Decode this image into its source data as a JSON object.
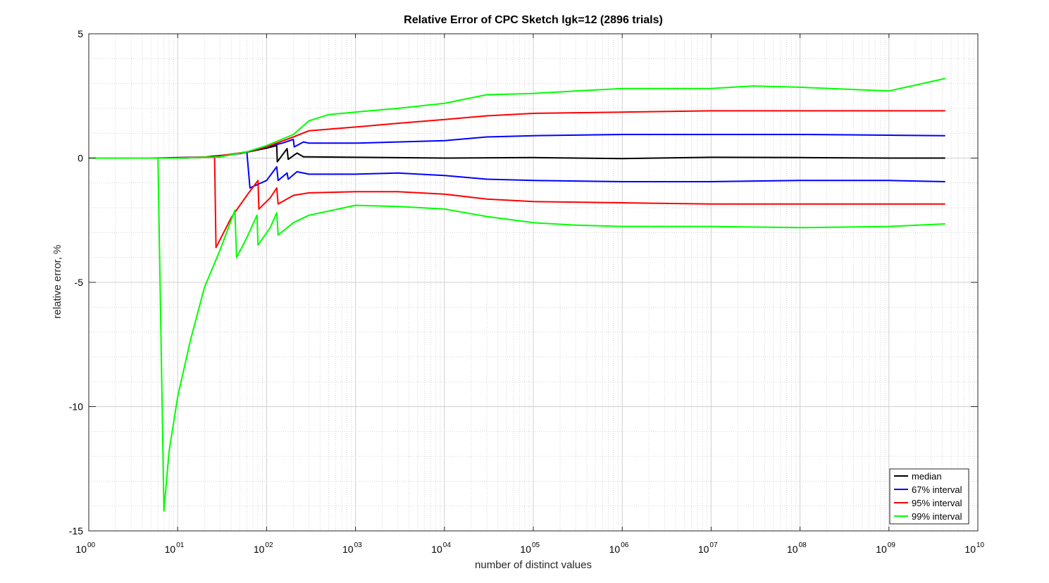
{
  "chart_data": {
    "type": "line",
    "title": "Relative Error of CPC Sketch lgk=12 (2896 trials)",
    "xlabel": "number of distinct values",
    "ylabel": "relative error, %",
    "xscale": "log",
    "xlim": [
      1,
      10000000000
    ],
    "ylim": [
      -15,
      5
    ],
    "grid": true,
    "legend_position": "bottom-right",
    "x_ticks": [
      {
        "base": "10",
        "exp": "00"
      },
      {
        "base": "10",
        "exp": "01"
      },
      {
        "base": "10",
        "exp": "02"
      },
      {
        "base": "10",
        "exp": "03"
      },
      {
        "base": "10",
        "exp": "04"
      },
      {
        "base": "10",
        "exp": "05"
      },
      {
        "base": "10",
        "exp": "06"
      },
      {
        "base": "10",
        "exp": "07"
      },
      {
        "base": "10",
        "exp": "08"
      },
      {
        "base": "10",
        "exp": "09"
      },
      {
        "base": "10",
        "exp": "10"
      }
    ],
    "y_ticks": [
      "5",
      "0",
      "-5",
      "-10",
      "-15"
    ],
    "series": [
      {
        "name": "median",
        "color": "#000000",
        "points": [
          [
            1,
            0
          ],
          [
            5,
            0
          ],
          [
            20,
            0.04
          ],
          [
            50,
            0.18
          ],
          [
            100,
            0.4
          ],
          [
            130,
            0.5
          ],
          [
            132,
            -0.15
          ],
          [
            170,
            0.38
          ],
          [
            175,
            -0.05
          ],
          [
            220,
            0.2
          ],
          [
            260,
            0.05
          ],
          [
            300,
            0.05
          ],
          [
            1000,
            0.03
          ],
          [
            10000,
            0.0
          ],
          [
            100000,
            0.02
          ],
          [
            1000000,
            -0.02
          ],
          [
            10000000,
            0.03
          ],
          [
            100000000,
            0.02
          ],
          [
            1000000000,
            0.0
          ],
          [
            4300000000,
            0.0
          ]
        ]
      },
      {
        "name": "67% interval",
        "color": "#0000ff",
        "points": [
          [
            1,
            0
          ],
          [
            10,
            0
          ],
          [
            30,
            0.05
          ],
          [
            60,
            0.25
          ],
          [
            100,
            0.45
          ],
          [
            150,
            0.6
          ],
          [
            200,
            0.75
          ],
          [
            205,
            0.45
          ],
          [
            260,
            0.65
          ],
          [
            300,
            0.6
          ],
          [
            1000,
            0.6
          ],
          [
            3000,
            0.65
          ],
          [
            10000,
            0.7
          ],
          [
            30000,
            0.85
          ],
          [
            100000,
            0.9
          ],
          [
            1000000,
            0.95
          ],
          [
            10000000,
            0.95
          ],
          [
            100000000,
            0.95
          ],
          [
            1000000000,
            0.92
          ],
          [
            4300000000,
            0.9
          ]
        ]
      },
      {
        "name": "67% interval",
        "color": "#0000ff",
        "points": [
          [
            1,
            0
          ],
          [
            10,
            0
          ],
          [
            30,
            0.05
          ],
          [
            60,
            0.25
          ],
          [
            65,
            -1.2
          ],
          [
            100,
            -0.9
          ],
          [
            130,
            -0.35
          ],
          [
            135,
            -0.9
          ],
          [
            170,
            -0.6
          ],
          [
            175,
            -0.85
          ],
          [
            220,
            -0.55
          ],
          [
            300,
            -0.65
          ],
          [
            1000,
            -0.65
          ],
          [
            3000,
            -0.6
          ],
          [
            10000,
            -0.7
          ],
          [
            30000,
            -0.85
          ],
          [
            100000,
            -0.9
          ],
          [
            1000000,
            -0.95
          ],
          [
            10000000,
            -0.95
          ],
          [
            100000000,
            -0.9
          ],
          [
            1000000000,
            -0.9
          ],
          [
            4300000000,
            -0.95
          ]
        ]
      },
      {
        "name": "95% interval",
        "color": "#ff0000",
        "points": [
          [
            1,
            0
          ],
          [
            10,
            0
          ],
          [
            25,
            0.05
          ],
          [
            60,
            0.25
          ],
          [
            100,
            0.45
          ],
          [
            200,
            0.85
          ],
          [
            300,
            1.1
          ],
          [
            1000,
            1.25
          ],
          [
            3000,
            1.4
          ],
          [
            10000,
            1.55
          ],
          [
            30000,
            1.7
          ],
          [
            100000,
            1.8
          ],
          [
            1000000,
            1.85
          ],
          [
            10000000,
            1.9
          ],
          [
            100000000,
            1.9
          ],
          [
            1000000000,
            1.9
          ],
          [
            4300000000,
            1.9
          ]
        ]
      },
      {
        "name": "95% interval",
        "color": "#ff0000",
        "points": [
          [
            1,
            0
          ],
          [
            10,
            0
          ],
          [
            26,
            0.04
          ],
          [
            27,
            -3.6
          ],
          [
            40,
            -2.4
          ],
          [
            60,
            -1.5
          ],
          [
            80,
            -0.9
          ],
          [
            82,
            -2.05
          ],
          [
            110,
            -1.6
          ],
          [
            130,
            -1.2
          ],
          [
            135,
            -1.85
          ],
          [
            200,
            -1.5
          ],
          [
            300,
            -1.4
          ],
          [
            1000,
            -1.35
          ],
          [
            3000,
            -1.35
          ],
          [
            10000,
            -1.45
          ],
          [
            30000,
            -1.65
          ],
          [
            100000,
            -1.75
          ],
          [
            1000000,
            -1.8
          ],
          [
            10000000,
            -1.85
          ],
          [
            100000000,
            -1.85
          ],
          [
            1000000000,
            -1.85
          ],
          [
            4300000000,
            -1.85
          ]
        ]
      },
      {
        "name": "99% interval",
        "color": "#00ff00",
        "points": [
          [
            1,
            0
          ],
          [
            10,
            0
          ],
          [
            30,
            0.05
          ],
          [
            60,
            0.25
          ],
          [
            100,
            0.5
          ],
          [
            200,
            0.95
          ],
          [
            300,
            1.5
          ],
          [
            500,
            1.75
          ],
          [
            1000,
            1.85
          ],
          [
            3000,
            2.0
          ],
          [
            10000,
            2.2
          ],
          [
            30000,
            2.55
          ],
          [
            100000,
            2.6
          ],
          [
            300000,
            2.7
          ],
          [
            1000000,
            2.8
          ],
          [
            10000000,
            2.8
          ],
          [
            30000000,
            2.9
          ],
          [
            100000000,
            2.85
          ],
          [
            1000000000,
            2.7
          ],
          [
            4300000000,
            3.2
          ]
        ]
      },
      {
        "name": "99% interval",
        "color": "#00ff00",
        "points": [
          [
            1,
            0
          ],
          [
            6,
            0
          ],
          [
            7,
            -14.2
          ],
          [
            8,
            -11.8
          ],
          [
            10,
            -9.6
          ],
          [
            14,
            -7.3
          ],
          [
            20,
            -5.2
          ],
          [
            30,
            -3.7
          ],
          [
            44,
            -2.1
          ],
          [
            46,
            -4.0
          ],
          [
            60,
            -3.2
          ],
          [
            78,
            -2.3
          ],
          [
            80,
            -3.5
          ],
          [
            110,
            -2.8
          ],
          [
            130,
            -2.2
          ],
          [
            135,
            -3.1
          ],
          [
            200,
            -2.6
          ],
          [
            300,
            -2.3
          ],
          [
            1000,
            -1.9
          ],
          [
            3000,
            -1.95
          ],
          [
            10000,
            -2.05
          ],
          [
            30000,
            -2.35
          ],
          [
            100000,
            -2.6
          ],
          [
            300000,
            -2.7
          ],
          [
            1000000,
            -2.75
          ],
          [
            10000000,
            -2.75
          ],
          [
            100000000,
            -2.8
          ],
          [
            1000000000,
            -2.75
          ],
          [
            4300000000,
            -2.65
          ]
        ]
      }
    ],
    "legend": [
      {
        "label": "median",
        "color": "#000000"
      },
      {
        "label": "67% interval",
        "color": "#0000ff"
      },
      {
        "label": "95% interval",
        "color": "#ff0000"
      },
      {
        "label": "99% interval",
        "color": "#00ff00"
      }
    ]
  }
}
